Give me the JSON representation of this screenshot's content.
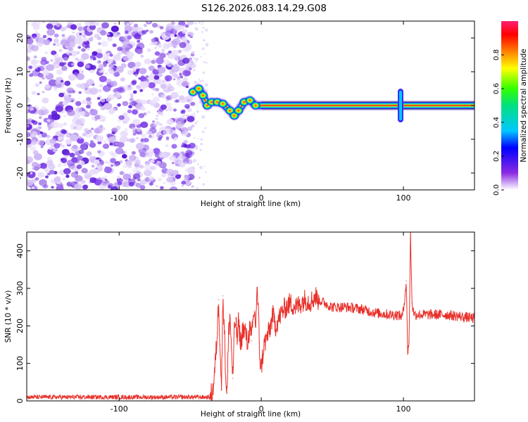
{
  "title": "S126.2026.083.14.29.G08",
  "chart_data": [
    {
      "type": "heatmap",
      "name": "spectrogram",
      "xlabel": "Height of straight line (km)",
      "ylabel": "Frequency (Hz)",
      "xlim": [
        -165,
        150
      ],
      "ylim": [
        -25,
        25
      ],
      "xticks": [
        -100,
        0,
        100
      ],
      "yticks": [
        -20,
        -10,
        0,
        10,
        20
      ],
      "noise_region_x": [
        -165,
        -48
      ],
      "signal_trace": [
        {
          "x": -48,
          "y": 4
        },
        {
          "x": -44,
          "y": 5
        },
        {
          "x": -41,
          "y": 3
        },
        {
          "x": -38,
          "y": 0
        },
        {
          "x": -35,
          "y": 1
        },
        {
          "x": -31,
          "y": 1
        },
        {
          "x": -27,
          "y": 0.5
        },
        {
          "x": -22,
          "y": -1.5
        },
        {
          "x": -19,
          "y": -3
        },
        {
          "x": -16,
          "y": -1.5
        },
        {
          "x": -12,
          "y": 1
        },
        {
          "x": -8,
          "y": 1.5
        },
        {
          "x": -4,
          "y": 0
        },
        {
          "x": 0,
          "y": 0
        },
        {
          "x": 20,
          "y": 0
        },
        {
          "x": 95,
          "y": 0
        },
        {
          "x": 98,
          "y": 0
        },
        {
          "x": 150,
          "y": 0
        }
      ],
      "spikes": [
        {
          "x": 98,
          "y_range": [
            -5,
            5
          ]
        }
      ],
      "colorbar": {
        "label": "Normalized spectral amplitude",
        "ticks": [
          0.0,
          0.2,
          0.4,
          0.6,
          0.8
        ],
        "range": [
          0,
          1
        ]
      }
    },
    {
      "type": "line",
      "name": "snr",
      "xlabel": "Height of straight line (km)",
      "ylabel": "SNR (10 * v/v)",
      "xlim": [
        -165,
        150
      ],
      "ylim": [
        0,
        450
      ],
      "xticks": [
        -100,
        0,
        100
      ],
      "yticks": [
        0,
        100,
        200,
        300,
        400
      ],
      "series_color": "#e8302a",
      "series": [
        {
          "name": "SNR",
          "x": [
            -165,
            -100,
            -50,
            -36,
            -34,
            -33,
            -32,
            -31,
            -30,
            -29,
            -28,
            -27,
            -26,
            -25,
            -24,
            -23,
            -22,
            -21,
            -20,
            -19,
            -18,
            -17,
            -16,
            -15,
            -14,
            -13,
            -12,
            -11,
            -10,
            -9,
            -8,
            -7,
            -6,
            -5,
            -4,
            -3,
            -2,
            -1,
            0,
            2,
            4,
            6,
            8,
            10,
            15,
            20,
            25,
            30,
            35,
            38,
            40,
            45,
            50,
            60,
            70,
            80,
            90,
            95,
            99,
            100,
            101,
            102,
            103,
            104,
            105,
            106,
            107,
            108,
            110,
            120,
            130,
            140,
            150
          ],
          "y": [
            10,
            10,
            10,
            10,
            30,
            70,
            120,
            180,
            270,
            150,
            30,
            280,
            200,
            60,
            20,
            180,
            230,
            140,
            60,
            180,
            220,
            160,
            210,
            170,
            150,
            200,
            180,
            190,
            150,
            170,
            200,
            160,
            200,
            240,
            200,
            300,
            230,
            110,
            90,
            150,
            170,
            190,
            230,
            200,
            240,
            260,
            250,
            270,
            265,
            280,
            270,
            260,
            250,
            250,
            245,
            235,
            230,
            230,
            225,
            240,
            280,
            320,
            130,
            160,
            450,
            260,
            240,
            230,
            230,
            230,
            230,
            225,
            220
          ]
        }
      ]
    }
  ]
}
